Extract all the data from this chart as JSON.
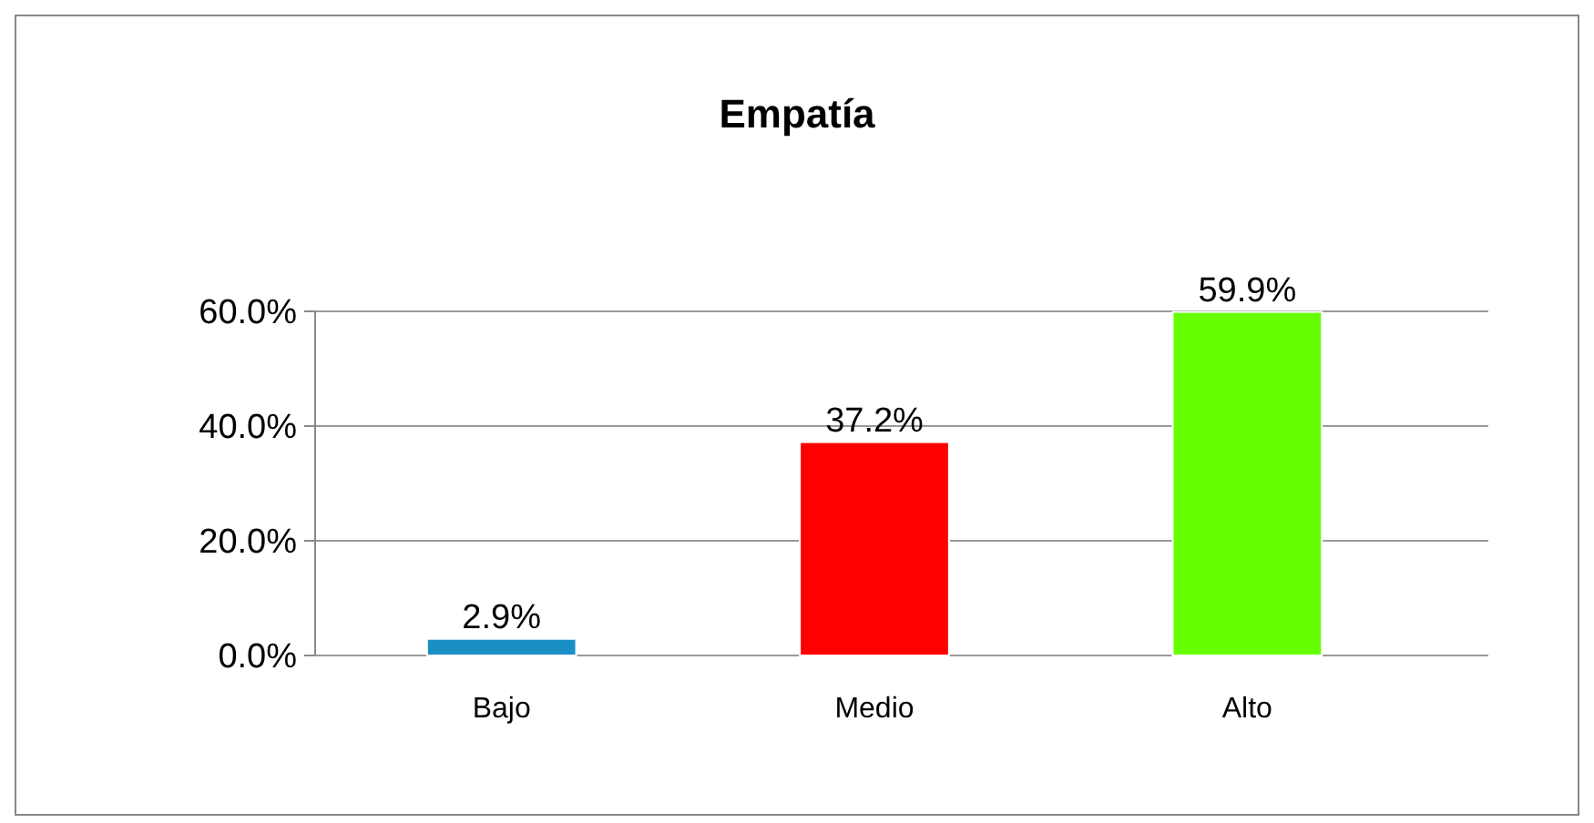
{
  "chart_data": {
    "type": "bar",
    "title": "Empatía",
    "categories": [
      "Bajo",
      "Medio",
      "Alto"
    ],
    "values": [
      2.9,
      37.2,
      59.9
    ],
    "colors": [
      "#1a8fc6",
      "#ff0000",
      "#66ff00"
    ],
    "value_labels": [
      "2.9%",
      "37.2%",
      "59.9%"
    ],
    "ylim": [
      0,
      60
    ],
    "yticks": [
      {
        "value": 0,
        "label": "0.0%"
      },
      {
        "value": 20,
        "label": "20.0%"
      },
      {
        "value": 40,
        "label": "40.0%"
      },
      {
        "value": 60,
        "label": "60.0%"
      }
    ],
    "grid": "y"
  }
}
